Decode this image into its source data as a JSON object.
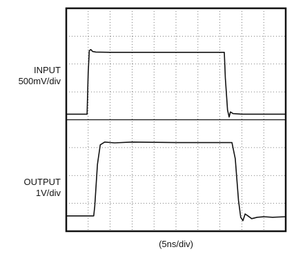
{
  "labels": {
    "input_name": "INPUT",
    "input_scale": "500mV/div",
    "output_name": "OUTPUT",
    "output_scale": "1V/div",
    "x_scale": "(5ns/div)"
  },
  "chart_data": {
    "type": "line",
    "title": "",
    "xlabel": "(5ns/div)",
    "ylabel": "",
    "grid": true,
    "x_unit": "div",
    "x_range": [
      0,
      10
    ],
    "y_unit": "div",
    "y_range": [
      0,
      8
    ],
    "series": [
      {
        "name": "INPUT",
        "scale": "500mV/div",
        "color": "#111111",
        "points": [
          [
            0,
            4.2
          ],
          [
            0.95,
            4.2
          ],
          [
            1.0,
            5.7
          ],
          [
            1.05,
            6.48
          ],
          [
            1.12,
            6.52
          ],
          [
            1.2,
            6.45
          ],
          [
            1.35,
            6.43
          ],
          [
            2.0,
            6.42
          ],
          [
            4.0,
            6.42
          ],
          [
            6.0,
            6.42
          ],
          [
            7.2,
            6.42
          ],
          [
            7.25,
            5.5
          ],
          [
            7.35,
            4.35
          ],
          [
            7.42,
            4.1
          ],
          [
            7.48,
            4.28
          ],
          [
            7.6,
            4.22
          ],
          [
            8.0,
            4.2
          ],
          [
            10,
            4.2
          ]
        ]
      },
      {
        "name": "OUTPUT",
        "scale": "1V/div",
        "color": "#111111",
        "points": [
          [
            0,
            0.55
          ],
          [
            1.25,
            0.55
          ],
          [
            1.3,
            0.9
          ],
          [
            1.42,
            2.4
          ],
          [
            1.55,
            3.1
          ],
          [
            1.75,
            3.2
          ],
          [
            2.2,
            3.17
          ],
          [
            3.0,
            3.2
          ],
          [
            5.0,
            3.18
          ],
          [
            7.0,
            3.18
          ],
          [
            7.55,
            3.18
          ],
          [
            7.7,
            2.6
          ],
          [
            7.85,
            1.1
          ],
          [
            7.95,
            0.5
          ],
          [
            8.05,
            0.38
          ],
          [
            8.15,
            0.62
          ],
          [
            8.28,
            0.55
          ],
          [
            8.45,
            0.45
          ],
          [
            8.7,
            0.5
          ],
          [
            9.0,
            0.52
          ],
          [
            9.4,
            0.5
          ],
          [
            10,
            0.52
          ]
        ]
      }
    ]
  }
}
